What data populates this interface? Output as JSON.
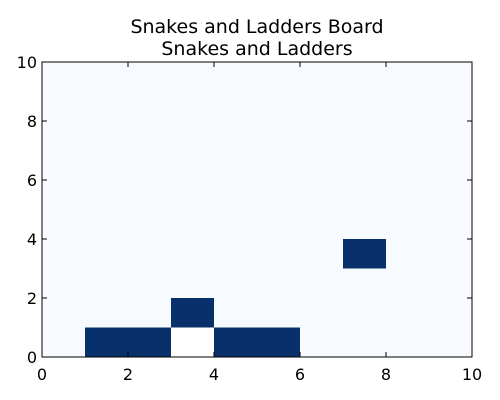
{
  "chart_data": {
    "type": "heatmap",
    "title": "Snakes and Ladders Board",
    "subtitle": "Snakes and Ladders",
    "xlabel": "",
    "ylabel": "",
    "xlim": [
      0,
      10
    ],
    "ylim": [
      0,
      10
    ],
    "x_ticks": [
      "0",
      "2",
      "4",
      "6",
      "8",
      "10"
    ],
    "y_ticks": [
      "0",
      "2",
      "4",
      "6",
      "8",
      "10"
    ],
    "background_color": "#f7fbff",
    "filled_color": "#08306b",
    "empty_cell_color": "#ffffff",
    "grid": false,
    "cells": [
      {
        "x": 1,
        "y": 0,
        "w": 2,
        "h": 1,
        "state": "filled"
      },
      {
        "x": 3,
        "y": 1,
        "w": 1,
        "h": 1,
        "state": "filled"
      },
      {
        "x": 3,
        "y": 0,
        "w": 1,
        "h": 1,
        "state": "empty"
      },
      {
        "x": 4,
        "y": 0,
        "w": 2,
        "h": 1,
        "state": "filled"
      },
      {
        "x": 7,
        "y": 3,
        "w": 1,
        "h": 1,
        "state": "filled"
      }
    ]
  }
}
